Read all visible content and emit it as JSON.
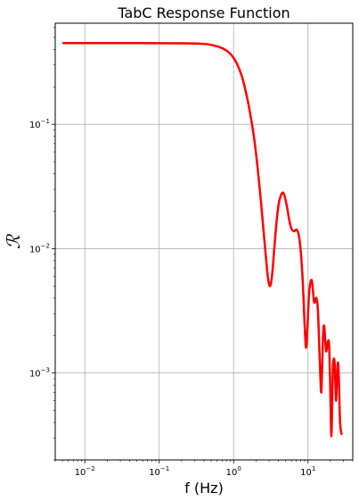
{
  "chart_data": {
    "type": "line",
    "title": "TabC Response Function",
    "xlabel": "f (Hz)",
    "ylabel": "ℛ",
    "x_scale": "log",
    "y_scale": "log",
    "xlim": [
      0.004,
      40
    ],
    "ylim": [
      0.0002,
      0.65
    ],
    "grid": true,
    "line_color": "#ff0000",
    "x_ticks": [
      {
        "value": 0.01,
        "base": "10",
        "exp": "−2"
      },
      {
        "value": 0.1,
        "base": "10",
        "exp": "−1"
      },
      {
        "value": 1,
        "base": "10",
        "exp": "0"
      },
      {
        "value": 10,
        "base": "10",
        "exp": "1"
      }
    ],
    "y_ticks": [
      {
        "value": 0.001,
        "base": "10",
        "exp": "−3"
      },
      {
        "value": 0.01,
        "base": "10",
        "exp": "−2"
      },
      {
        "value": 0.1,
        "base": "10",
        "exp": "−1"
      }
    ],
    "series": [
      {
        "points": [
          [
            0.005,
            0.45
          ],
          [
            0.05,
            0.45
          ],
          [
            0.2,
            0.448
          ],
          [
            0.35,
            0.445
          ],
          [
            0.5,
            0.435
          ],
          [
            0.7,
            0.41
          ],
          [
            0.9,
            0.37
          ],
          [
            1.1,
            0.31
          ],
          [
            1.3,
            0.24
          ],
          [
            1.5,
            0.17
          ],
          [
            1.7,
            0.115
          ],
          [
            1.9,
            0.075
          ],
          [
            2.1,
            0.045
          ],
          [
            2.3,
            0.026
          ],
          [
            2.5,
            0.015
          ],
          [
            2.7,
            0.009
          ],
          [
            2.9,
            0.0058
          ],
          [
            3.1,
            0.005
          ],
          [
            3.3,
            0.0062
          ],
          [
            3.5,
            0.0095
          ],
          [
            3.8,
            0.017
          ],
          [
            4.1,
            0.024
          ],
          [
            4.5,
            0.028
          ],
          [
            4.8,
            0.027
          ],
          [
            5.2,
            0.022
          ],
          [
            5.6,
            0.017
          ],
          [
            6.0,
            0.0145
          ],
          [
            6.5,
            0.0138
          ],
          [
            7.0,
            0.0142
          ],
          [
            7.5,
            0.013
          ],
          [
            8.0,
            0.0095
          ],
          [
            8.5,
            0.0055
          ],
          [
            9.0,
            0.0025
          ],
          [
            9.4,
            0.0016
          ],
          [
            9.8,
            0.0022
          ],
          [
            10.3,
            0.0042
          ],
          [
            10.8,
            0.0054
          ],
          [
            11.3,
            0.0055
          ],
          [
            11.7,
            0.0045
          ],
          [
            12.1,
            0.0037
          ],
          [
            12.6,
            0.0038
          ],
          [
            13.0,
            0.004
          ],
          [
            13.6,
            0.0032
          ],
          [
            14.2,
            0.0016
          ],
          [
            14.7,
            0.0009
          ],
          [
            15.1,
            0.0007
          ],
          [
            15.5,
            0.0011
          ],
          [
            16.0,
            0.0021
          ],
          [
            16.5,
            0.0024
          ],
          [
            17.0,
            0.0019
          ],
          [
            17.5,
            0.0015
          ],
          [
            18.0,
            0.0016
          ],
          [
            18.6,
            0.0018
          ],
          [
            19.2,
            0.0017
          ],
          [
            19.8,
            0.0009
          ],
          [
            20.2,
            0.0005
          ],
          [
            20.6,
            0.00031
          ],
          [
            21.1,
            0.0005
          ],
          [
            21.6,
            0.0011
          ],
          [
            22.2,
            0.0013
          ],
          [
            22.8,
            0.0012
          ],
          [
            23.4,
            0.0008
          ],
          [
            23.9,
            0.0006
          ],
          [
            24.5,
            0.0009
          ],
          [
            25.1,
            0.0012
          ],
          [
            25.7,
            0.0011
          ],
          [
            26.3,
            0.0007
          ],
          [
            27.0,
            0.0004
          ],
          [
            28.0,
            0.00033
          ],
          [
            29.0,
            0.00032
          ]
        ]
      }
    ]
  }
}
